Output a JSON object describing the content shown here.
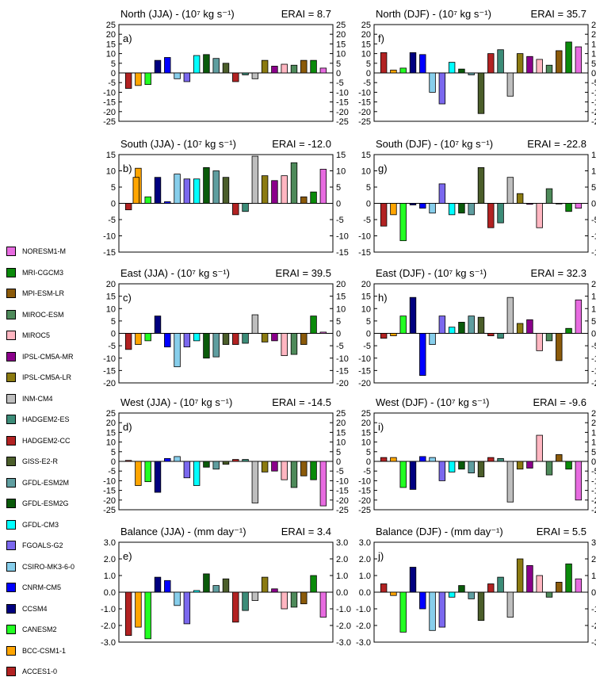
{
  "legend": {
    "models": [
      {
        "name": "NORESM1-M",
        "color": "#e76be0"
      },
      {
        "name": "MRI-CGCM3",
        "color": "#0a8a0a"
      },
      {
        "name": "MPI-ESM-LR",
        "color": "#8b5a0a"
      },
      {
        "name": "MIROC-ESM",
        "color": "#4e8a5a"
      },
      {
        "name": "MIROC5",
        "color": "#ffb6c1"
      },
      {
        "name": "IPSL-CM5A-MR",
        "color": "#8b008b"
      },
      {
        "name": "IPSL-CM5A-LR",
        "color": "#8b7a10"
      },
      {
        "name": "INM-CM4",
        "color": "#bebebe"
      },
      {
        "name": "HADGEM2-ES",
        "color": "#3c8c78"
      },
      {
        "name": "HADGEM2-CC",
        "color": "#b22222"
      },
      {
        "name": "GISS-E2-R",
        "color": "#4b5e2a"
      },
      {
        "name": "GFDL-ESM2M",
        "color": "#5f9ea0"
      },
      {
        "name": "GFDL-ESM2G",
        "color": "#0a5a0a"
      },
      {
        "name": "GFDL-CM3",
        "color": "#00ffff"
      },
      {
        "name": "FGOALS-G2",
        "color": "#7b68ee"
      },
      {
        "name": "CSIRO-MK3-6-0",
        "color": "#87ceeb"
      },
      {
        "name": "CNRM-CM5",
        "color": "#0000ff"
      },
      {
        "name": "CCSM4",
        "color": "#000080"
      },
      {
        "name": "CANESM2",
        "color": "#22ff22"
      },
      {
        "name": "BCC-CSM1-1",
        "color": "#ffa500"
      },
      {
        "name": "ACCES1-0",
        "color": "#b22222"
      }
    ]
  },
  "chart_data": [
    {
      "type": "bar",
      "panel": "a)",
      "title": "North (JJA) - (10⁷ kg s⁻¹)",
      "erai": "ERAI = 8.7",
      "yticks": [
        "25",
        "20",
        "15",
        "10",
        "5",
        "0",
        "-5",
        "-10",
        "-15",
        "-20",
        "-25"
      ],
      "ylim": [
        -25,
        25
      ],
      "values": [
        -8,
        -6.5,
        -6,
        6.5,
        8,
        -3,
        -4.5,
        9,
        9.5,
        7.5,
        5,
        -4.5,
        -1,
        -3,
        6.5,
        3.5,
        4.5,
        4,
        6.5,
        6.5,
        2.5
      ]
    },
    {
      "type": "bar",
      "panel": "f)",
      "title": "North (DJF) - (10⁷ kg s⁻¹)",
      "erai": "ERAI = 35.7",
      "yticks": [
        "25",
        "20",
        "15",
        "10",
        "5",
        "0",
        "-5",
        "-10",
        "-15",
        "-20",
        "-25"
      ],
      "ylim": [
        -25,
        25
      ],
      "values": [
        10.5,
        1.5,
        2.5,
        10.5,
        9.5,
        -10,
        -16,
        5.5,
        2,
        -1,
        -21,
        10,
        12,
        -12,
        10,
        8.5,
        7,
        4,
        11.5,
        16,
        13.5
      ]
    },
    {
      "type": "bar",
      "panel": "b)",
      "title": "South (JJA) - (10⁷ kg s⁻¹)",
      "erai": "ERAI = -12.0",
      "yticks": [
        "15",
        "10",
        "5",
        "0",
        "-5",
        "-10",
        "-15"
      ],
      "ylim": [
        -15,
        15
      ],
      "values": [
        -2,
        10.8,
        2,
        8,
        0.5,
        9,
        7.5,
        7.5,
        11,
        10,
        8,
        -3.5,
        -2.5,
        14.5,
        8.5,
        7,
        8.5,
        12.5,
        2,
        3.5,
        10.5
      ],
      "extra_bar": {
        "index": 1,
        "value": 8
      }
    },
    {
      "type": "bar",
      "panel": "g)",
      "title": "South (DJF) - (10⁷ kg s⁻¹)",
      "erai": "ERAI = -22.8",
      "yticks": [
        "15",
        "10",
        "5",
        "0",
        "-5",
        "-10",
        "-15"
      ],
      "ylim": [
        -15,
        15
      ],
      "values": [
        -7,
        -3.5,
        -11.5,
        -0.5,
        -1.5,
        -3,
        6,
        -3.5,
        -3,
        -3.5,
        11,
        -7.5,
        -6,
        8,
        3,
        -0.3,
        -7.5,
        4.5,
        0,
        -2.5,
        -1.5
      ]
    },
    {
      "type": "bar",
      "panel": "c)",
      "title": "East (JJA) - (10⁷ kg s⁻¹)",
      "erai": "ERAI = 39.5",
      "yticks": [
        "20",
        "15",
        "10",
        "5",
        "0",
        "-5",
        "-10",
        "-15",
        "-20"
      ],
      "ylim": [
        -20,
        20
      ],
      "values": [
        -6.5,
        -4.5,
        -3,
        7,
        -5.5,
        -13.5,
        -5.5,
        -3,
        -10,
        -9.5,
        -4.5,
        -4.5,
        -4,
        7.5,
        -3.5,
        -3,
        -9,
        -8.5,
        -4.5,
        7,
        0.5
      ]
    },
    {
      "type": "bar",
      "panel": "h)",
      "title": "East (DJF) - (10⁷ kg s⁻¹)",
      "erai": "ERAI = 32.3",
      "yticks": [
        "20",
        "15",
        "10",
        "5",
        "0",
        "-5",
        "-10",
        "-15",
        "-20"
      ],
      "ylim": [
        -20,
        20
      ],
      "values": [
        -2,
        -1,
        7,
        14.5,
        -17,
        -4.5,
        7,
        2.5,
        4.5,
        7,
        6.5,
        -1,
        -2,
        14.5,
        4,
        5.5,
        -7,
        -3,
        -11,
        2,
        13.5
      ]
    },
    {
      "type": "bar",
      "panel": "d)",
      "title": "West (JJA) - (10⁷ kg s⁻¹)",
      "erai": "ERAI = -14.5",
      "yticks": [
        "25",
        "20",
        "15",
        "10",
        "5",
        "0",
        "-5",
        "-10",
        "-15",
        "-20",
        "-25"
      ],
      "ylim": [
        -25,
        25
      ],
      "values": [
        0.5,
        -12.5,
        -10.5,
        -16,
        1.5,
        2.5,
        -8.5,
        -12.5,
        -3,
        -4,
        -1.5,
        1,
        1,
        -21.5,
        -5.5,
        -5,
        -9.5,
        -13.5,
        -7.5,
        -9.5,
        -23
      ]
    },
    {
      "type": "bar",
      "panel": "i)",
      "title": "West (DJF) - (10⁷ kg s⁻¹)",
      "erai": "ERAI = -9.6",
      "yticks": [
        "25",
        "20",
        "15",
        "10",
        "5",
        "0",
        "-5",
        "-10",
        "-15",
        "-20",
        "-25"
      ],
      "ylim": [
        -25,
        25
      ],
      "values": [
        2,
        2,
        -13.5,
        -14.5,
        2.5,
        2,
        -10,
        -5.5,
        -4,
        -6,
        -8,
        2,
        1.5,
        -21,
        -4,
        -3.5,
        13.5,
        -7,
        3.5,
        -4,
        -20
      ]
    },
    {
      "type": "bar",
      "panel": "e)",
      "title": "Balance (JJA) - (mm day⁻¹)",
      "erai": "ERAI = 3.4",
      "yticks": [
        "3.0",
        "2.0",
        "1.0",
        "0.0",
        "-1.0",
        "-2.0",
        "-3.0"
      ],
      "ylim": [
        -3,
        3
      ],
      "values": [
        -2.6,
        -2.1,
        -2.8,
        0.9,
        0.7,
        -0.8,
        -1.9,
        0.1,
        1.1,
        0.4,
        0.8,
        -1.8,
        -1.1,
        -0.5,
        0.9,
        0.2,
        -1.0,
        -0.9,
        -0.7,
        1.0,
        -1.5
      ]
    },
    {
      "type": "bar",
      "panel": "j)",
      "title": "Balance (DJF) - (mm day⁻¹)",
      "erai": "ERAI = 5.5",
      "yticks": [
        "3.0",
        "2.0",
        "1.0",
        "0.0",
        "-1.0",
        "-2.0",
        "-3.0"
      ],
      "ylim": [
        -3,
        3
      ],
      "values": [
        0.5,
        -0.2,
        -2.4,
        1.5,
        -1.0,
        -2.3,
        -2.1,
        -0.3,
        0.4,
        -0.4,
        -1.7,
        0.5,
        0.9,
        -1.5,
        2.0,
        1.6,
        1.0,
        -0.3,
        0.6,
        1.7,
        0.8
      ]
    }
  ]
}
